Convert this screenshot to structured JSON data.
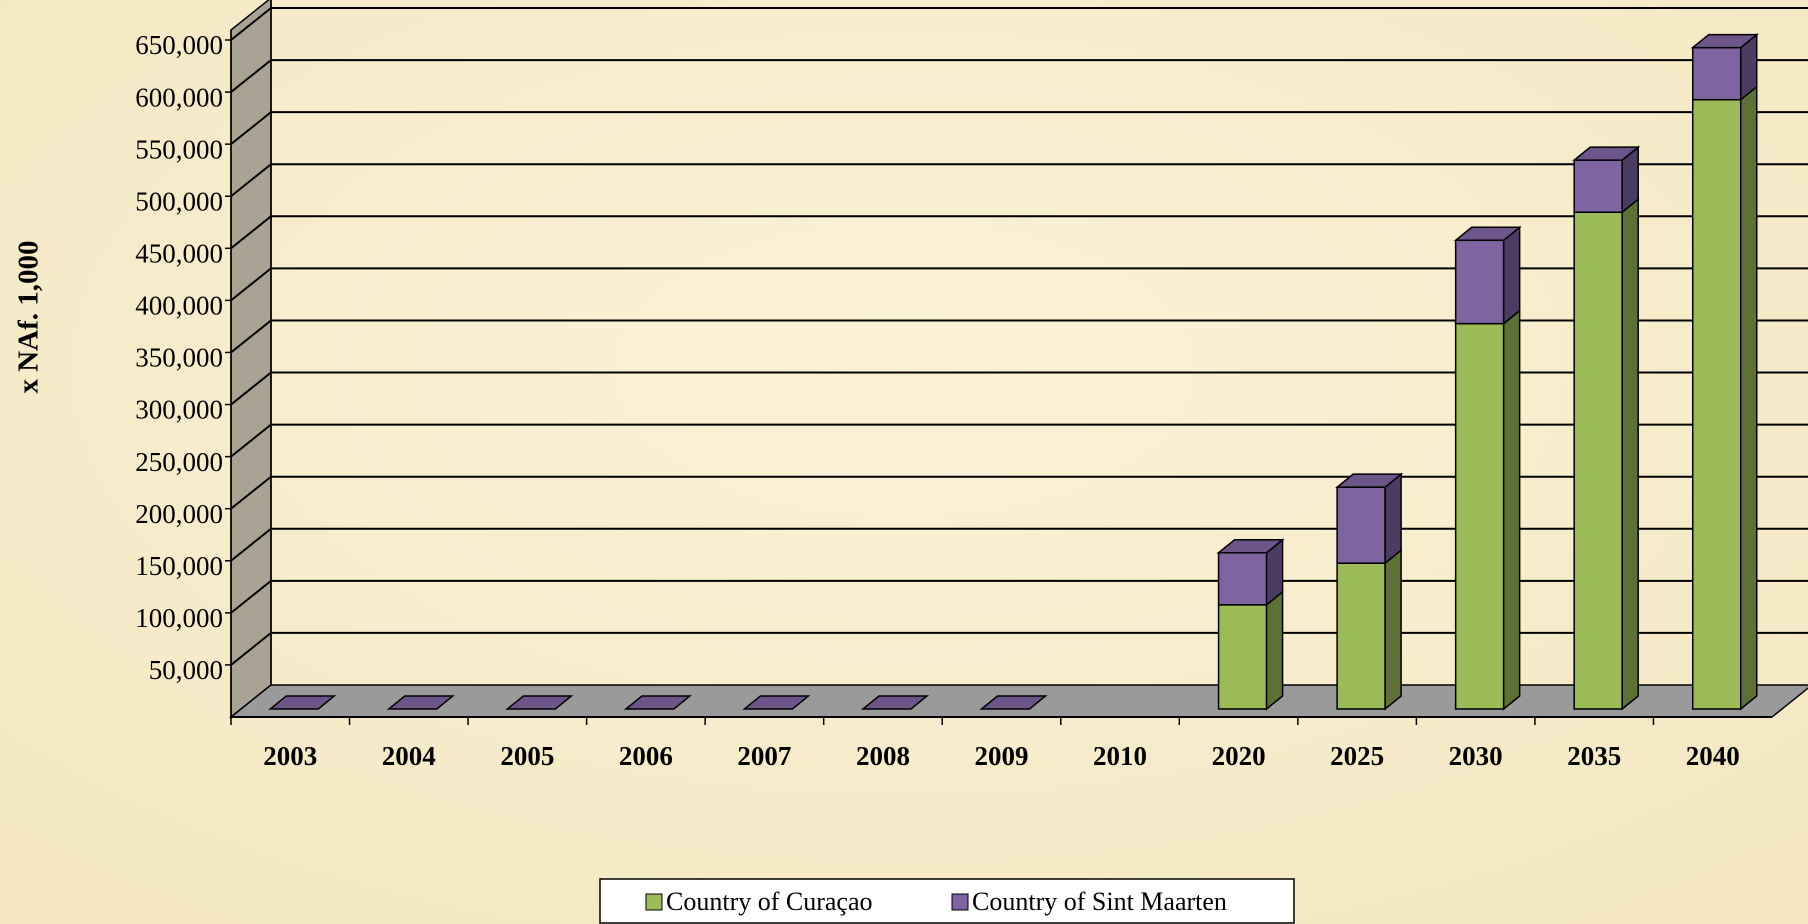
{
  "chart_data": {
    "type": "bar",
    "stacked": true,
    "y_label": "x NAf. 1,000",
    "categories": [
      "2003",
      "2004",
      "2005",
      "2006",
      "2007",
      "2008",
      "2009",
      "2010",
      "2020",
      "2025",
      "2030",
      "2035",
      "2040"
    ],
    "series": [
      {
        "name": "Country of Curaçao",
        "color": "#9bbb59",
        "values": [
          0,
          0,
          0,
          0,
          0,
          0,
          0,
          null,
          100000,
          140000,
          370000,
          477000,
          585000
        ]
      },
      {
        "name": "Country of Sint Maarten",
        "color": "#8064a2",
        "values": [
          0,
          0,
          0,
          0,
          0,
          0,
          0,
          null,
          50000,
          73000,
          80000,
          50000,
          50000
        ]
      }
    ],
    "ylim": [
      0,
      650000
    ],
    "yticks": [
      {
        "value": 50000,
        "label": "50,000"
      },
      {
        "value": 100000,
        "label": "100,000"
      },
      {
        "value": 150000,
        "label": "150,000"
      },
      {
        "value": 200000,
        "label": "200,000"
      },
      {
        "value": 250000,
        "label": "250,000"
      },
      {
        "value": 300000,
        "label": "300,000"
      },
      {
        "value": 350000,
        "label": "350,000"
      },
      {
        "value": 400000,
        "label": "400,000"
      },
      {
        "value": 450000,
        "label": "450,000"
      },
      {
        "value": 500000,
        "label": "500,000"
      },
      {
        "value": 550000,
        "label": "550,000"
      },
      {
        "value": 600000,
        "label": "600,000"
      },
      {
        "value": 650000,
        "label": "650,000"
      }
    ],
    "grid": true,
    "legend": "bottom"
  }
}
